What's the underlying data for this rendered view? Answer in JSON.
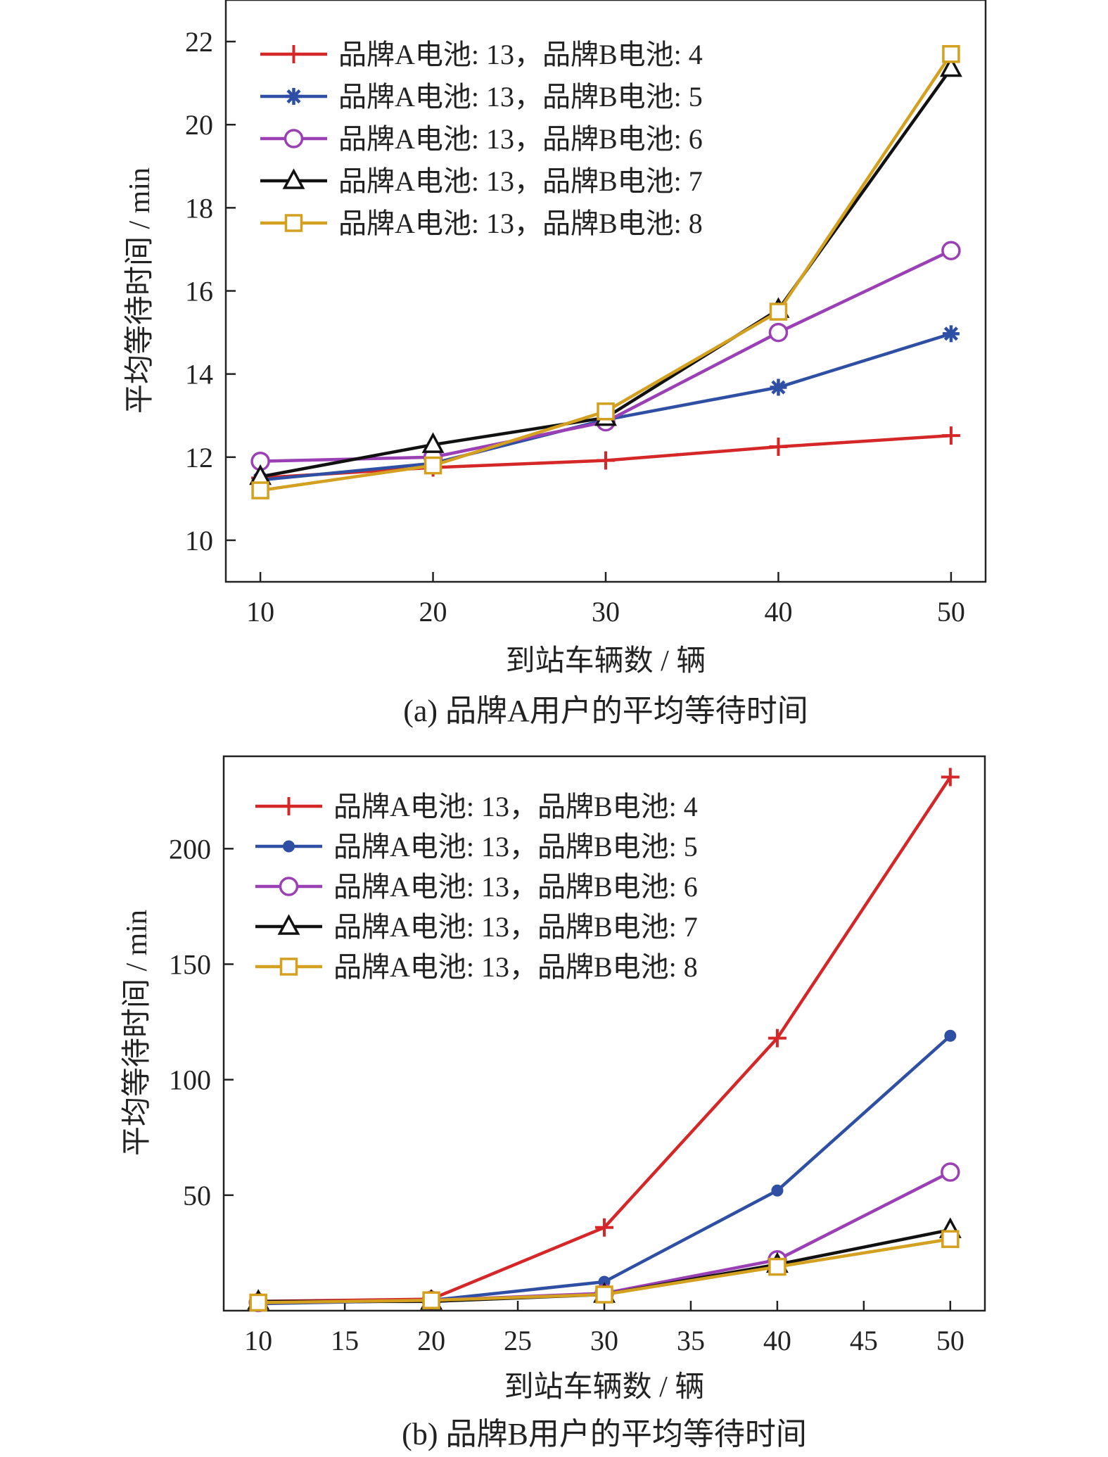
{
  "chart_data": [
    {
      "type": "line",
      "caption": "(a) 品牌A用户的平均等待时间",
      "title": "",
      "xlabel": "到站车辆数 / 辆",
      "ylabel": "平均等待时间 / min",
      "xlim": [
        8,
        52
      ],
      "ylim": [
        9,
        23
      ],
      "xticks": [
        10,
        20,
        30,
        40,
        50
      ],
      "yticks": [
        10,
        12,
        14,
        16,
        18,
        20,
        22
      ],
      "grid": false,
      "legend_position": "top-left",
      "x": [
        10,
        20,
        30,
        40,
        50
      ],
      "series": [
        {
          "name": "品牌A电池: 13，品牌B电池: 4",
          "color": "#d62728",
          "marker": "plus",
          "values": [
            11.5,
            11.75,
            11.92,
            12.25,
            12.52
          ]
        },
        {
          "name": "品牌A电池: 13，品牌B电池: 5",
          "color": "#2e4fa3",
          "marker": "asterisk",
          "values": [
            11.45,
            11.85,
            12.9,
            13.68,
            14.97
          ]
        },
        {
          "name": "品牌A电池: 13，品牌B电池: 6",
          "color": "#9b3fb5",
          "marker": "circle",
          "values": [
            11.9,
            12.0,
            12.85,
            15.0,
            16.97
          ]
        },
        {
          "name": "品牌A电池: 13，品牌B电池: 7",
          "color": "#111111",
          "marker": "triangle",
          "values": [
            11.53,
            12.3,
            12.95,
            15.55,
            21.35
          ]
        },
        {
          "name": "品牌A电池: 13，品牌B电池: 8",
          "color": "#d4a020",
          "marker": "square",
          "values": [
            11.2,
            11.8,
            13.1,
            15.5,
            21.7
          ]
        }
      ]
    },
    {
      "type": "line",
      "caption": "(b) 品牌B用户的平均等待时间",
      "title": "",
      "xlabel": "到站车辆数 / 辆",
      "ylabel": "平均等待时间 / min",
      "xlim": [
        8,
        52
      ],
      "ylim": [
        0,
        240
      ],
      "xticks": [
        10,
        15,
        20,
        25,
        30,
        35,
        40,
        45,
        50
      ],
      "yticks": [
        50,
        100,
        150,
        200
      ],
      "grid": false,
      "legend_position": "top-left",
      "x": [
        10,
        20,
        30,
        40,
        50
      ],
      "series": [
        {
          "name": "品牌A电池: 13，品牌B电池: 4",
          "color": "#d62728",
          "marker": "plus",
          "values": [
            4,
            5,
            36,
            118,
            231
          ]
        },
        {
          "name": "品牌A电池: 13，品牌B电池: 5",
          "color": "#2e4fa3",
          "marker": "dot",
          "values": [
            3,
            4.5,
            12.5,
            52,
            119
          ]
        },
        {
          "name": "品牌A电池: 13，品牌B电池: 6",
          "color": "#9b3fb5",
          "marker": "circle",
          "values": [
            3.5,
            4.5,
            7.5,
            22,
            60
          ]
        },
        {
          "name": "品牌A电池: 13，品牌B电池: 7",
          "color": "#111111",
          "marker": "triangle",
          "values": [
            4,
            4,
            7,
            20,
            35
          ]
        },
        {
          "name": "品牌A电池: 13，品牌B电池: 8",
          "color": "#d4a020",
          "marker": "square",
          "values": [
            3.5,
            4.5,
            7,
            19,
            31
          ]
        }
      ]
    }
  ]
}
